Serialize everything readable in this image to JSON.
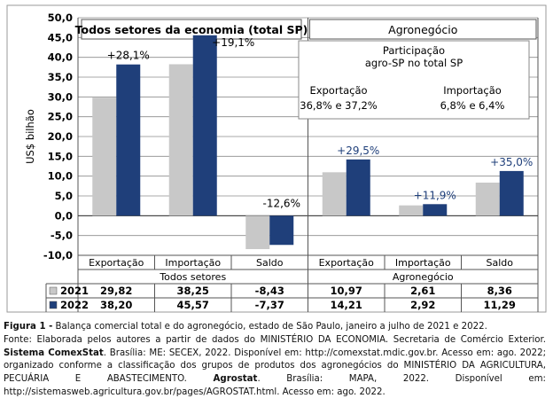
{
  "chart_data": {
    "type": "bar",
    "ylabel": "US$ bilhão",
    "ylim": [
      -10,
      50
    ],
    "yticks": [
      "50,0",
      "45,0",
      "40,0",
      "35,0",
      "30,0",
      "25,0",
      "20,0",
      "15,0",
      "10,0",
      "5,0",
      "0,0",
      "-5,0",
      "-10,0"
    ],
    "ytick_values": [
      50,
      45,
      40,
      35,
      30,
      25,
      20,
      15,
      10,
      5,
      0,
      -5,
      -10
    ],
    "categories": [
      "Exportação",
      "Importação",
      "Saldo",
      "Exportação",
      "Importação",
      "Saldo"
    ],
    "groups": [
      "Todos setores",
      "Agronegócio"
    ],
    "panel_titles": [
      "Todos setores da economia (total SP)",
      "Agronegócio"
    ],
    "series": [
      {
        "name": "2021",
        "color": "#c8c8c8",
        "values": [
          29.82,
          38.25,
          -8.43,
          10.97,
          2.61,
          8.36
        ],
        "labels": [
          "29,82",
          "38,25",
          "-8,43",
          "10,97",
          "2,61",
          "8,36"
        ]
      },
      {
        "name": "2022",
        "color": "#1f3f7a",
        "values": [
          38.2,
          45.57,
          -7.37,
          14.21,
          2.92,
          11.29
        ],
        "labels": [
          "38,20",
          "45,57",
          "-7,37",
          "14,21",
          "2,92",
          "11,29"
        ]
      }
    ],
    "annotations": [
      "+28,1%",
      "+19,1%",
      "-12,6%",
      "+29,5%",
      "+11,9%",
      "+35,0%"
    ],
    "participation_box": {
      "title_line1": "Participação",
      "title_line2": "agro-SP no total SP",
      "export_label": "Exportação",
      "export_value": "36,8% e 37,2%",
      "import_label": "Importação",
      "import_value": "6,8% e 6,4%"
    },
    "grid": true
  },
  "caption": {
    "line1_label": "Figura 1 -",
    "line1_text": " Balança comercial total e do agronegócio, estado de São Paulo, janeiro a julho de 2021 e 2022.",
    "p1": "Fonte: Elaborada pelos autores a partir de dados do MINISTÉRIO DA ECONOMIA. Secretaria de Comércio Exterior. ",
    "p1_bold": "Sistema ComexStat",
    "p2": ". Brasília: ME: SECEX, 2022. Disponível em: http://comexstat.mdic.gov.br. Acesso em: ago. 2022; organizado conforme a classificação dos grupos de produtos dos agronegócios do MINISTÉRIO DA AGRICULTURA, PECUÁRIA E ABASTECIMENTO. ",
    "p2_bold": "Agrostat",
    "p3": ". Brasília: MAPA, 2022. Disponível em: http://sistemasweb.agricultura.gov.br/pages/AGROSTAT.html. Acesso em: ago. 2022."
  }
}
